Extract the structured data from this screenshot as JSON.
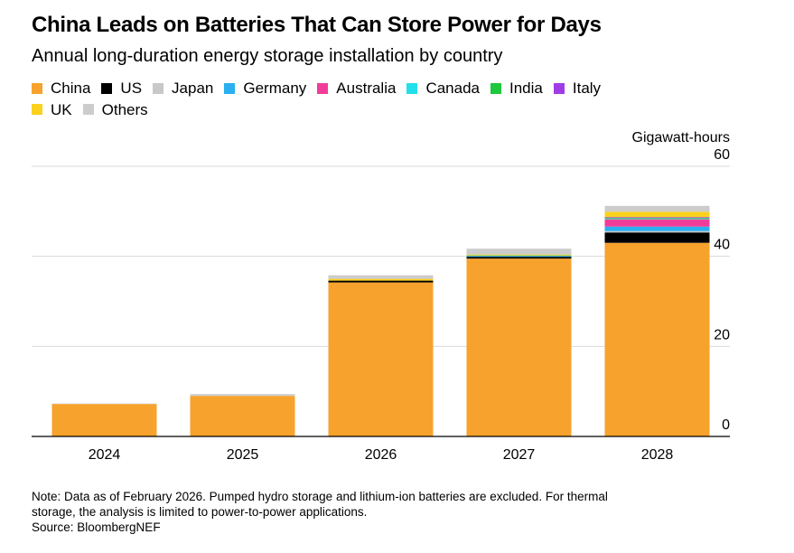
{
  "header": {
    "title": "China Leads on Batteries That Can Store Power for Days",
    "subtitle": "Annual long-duration energy storage installation by country"
  },
  "legend": [
    {
      "name": "China",
      "color": "#f7a22c"
    },
    {
      "name": "US",
      "color": "#000000"
    },
    {
      "name": "Japan",
      "color": "#c8c8c8"
    },
    {
      "name": "Germany",
      "color": "#2ab0f0"
    },
    {
      "name": "Australia",
      "color": "#f23c9a"
    },
    {
      "name": "Canada",
      "color": "#22e0ea"
    },
    {
      "name": "India",
      "color": "#1ec83c"
    },
    {
      "name": "Italy",
      "color": "#a03ce6"
    },
    {
      "name": "UK",
      "color": "#fad21e"
    },
    {
      "name": "Others",
      "color": "#cccccc"
    }
  ],
  "footer": {
    "note_line1": "Note: Data as of February 2026. Pumped hydro storage and lithium-ion batteries are excluded. For thermal",
    "note_line2": "storage, the analysis is limited to power-to-power applications.",
    "source": "Source: BloombergNEF"
  },
  "chart_data": {
    "type": "bar",
    "stacked": true,
    "ylabel": "Gigawatt-hours",
    "ylim": [
      0,
      60
    ],
    "yticks": [
      0,
      20,
      40,
      60
    ],
    "grid": true,
    "categories": [
      "2024",
      "2025",
      "2026",
      "2027",
      "2028"
    ],
    "series": [
      {
        "name": "China",
        "color": "#f7a22c",
        "values": [
          7.2,
          9.0,
          34.2,
          39.5,
          43.0
        ]
      },
      {
        "name": "US",
        "color": "#000000",
        "values": [
          0,
          0,
          0.4,
          0.4,
          2.3
        ]
      },
      {
        "name": "Japan",
        "color": "#c8c8c8",
        "values": [
          0,
          0,
          0,
          0,
          0.3
        ]
      },
      {
        "name": "Germany",
        "color": "#2ab0f0",
        "values": [
          0,
          0,
          0,
          0.2,
          1.0
        ]
      },
      {
        "name": "Australia",
        "color": "#f23c9a",
        "values": [
          0,
          0,
          0,
          0,
          1.6
        ]
      },
      {
        "name": "Canada",
        "color": "#22e0ea",
        "values": [
          0,
          0,
          0,
          0,
          0.1
        ]
      },
      {
        "name": "India",
        "color": "#1ec83c",
        "values": [
          0,
          0,
          0,
          0.1,
          0.2
        ]
      },
      {
        "name": "Italy",
        "color": "#a03ce6",
        "values": [
          0,
          0,
          0,
          0,
          0.2
        ]
      },
      {
        "name": "UK",
        "color": "#fad21e",
        "values": [
          0,
          0,
          0.4,
          0.2,
          1.2
        ]
      },
      {
        "name": "Others",
        "color": "#cccccc",
        "values": [
          0.1,
          0.4,
          0.8,
          1.3,
          1.3
        ]
      }
    ]
  }
}
